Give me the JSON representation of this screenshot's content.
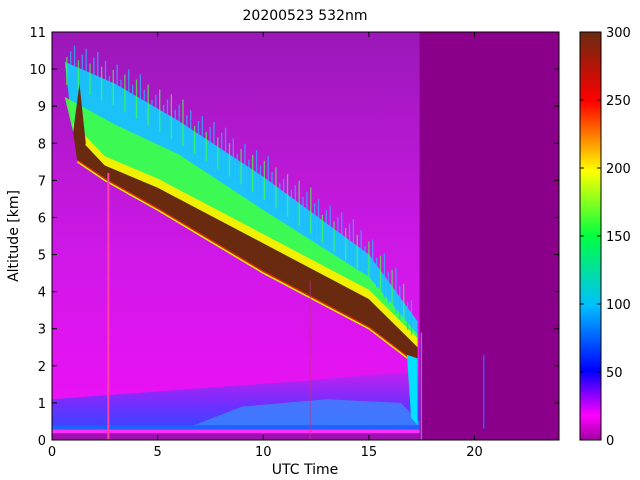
{
  "chart_data": {
    "type": "heatmap",
    "title": "20200523 532nm",
    "xlabel": "UTC Time",
    "ylabel": "Altitude [km]",
    "xlim": [
      0,
      24
    ],
    "ylim": [
      0,
      11
    ],
    "xticks": [
      0,
      5,
      10,
      15,
      20
    ],
    "yticks": [
      0,
      1,
      2,
      3,
      4,
      5,
      6,
      7,
      8,
      9,
      10,
      11
    ],
    "colorbar": {
      "range": [
        0,
        300
      ],
      "ticks": [
        0,
        50,
        100,
        150,
        200,
        250,
        300
      ],
      "colormap": "purple-magenta-blue-cyan-green-yellow-red-brown"
    },
    "layers": [
      {
        "kind": "dense-cloud",
        "value": 300,
        "top": [
          [
            1.0,
            8.3
          ],
          [
            2.5,
            7.4
          ],
          [
            5,
            6.8
          ],
          [
            10,
            5.3
          ],
          [
            15,
            3.8
          ],
          [
            17.3,
            2.5
          ]
        ],
        "bottom": [
          [
            1.2,
            7.5
          ],
          [
            2.5,
            7.0
          ],
          [
            5,
            6.2
          ],
          [
            10,
            4.5
          ],
          [
            15,
            3.0
          ],
          [
            17.3,
            2.0
          ]
        ]
      },
      {
        "kind": "cloud-fringe",
        "value": 150,
        "top": [
          [
            0.6,
            10.2
          ],
          [
            3,
            9.6
          ],
          [
            6,
            8.6
          ],
          [
            10,
            7.1
          ],
          [
            15,
            5.0
          ],
          [
            17.3,
            3.2
          ]
        ]
      },
      {
        "kind": "boundary-layer",
        "value": 50,
        "top_km": 1.8
      },
      {
        "kind": "surface-layer",
        "value": 40,
        "top_km": 0.4
      },
      {
        "kind": "no-data",
        "start_utc": 17.4,
        "end_utc": 24
      }
    ],
    "colors": {
      "no_data": "#8b008b",
      "clear_sky": "#b01ec8",
      "low_clear": "#e010f0",
      "bl": "#4040ff",
      "fringe_cyan": "#00e0ff",
      "fringe_green": "#40ff40",
      "fringe_yellow": "#f0f000",
      "fringe_red": "#ff2000",
      "cloud": "#6a2a10"
    }
  }
}
